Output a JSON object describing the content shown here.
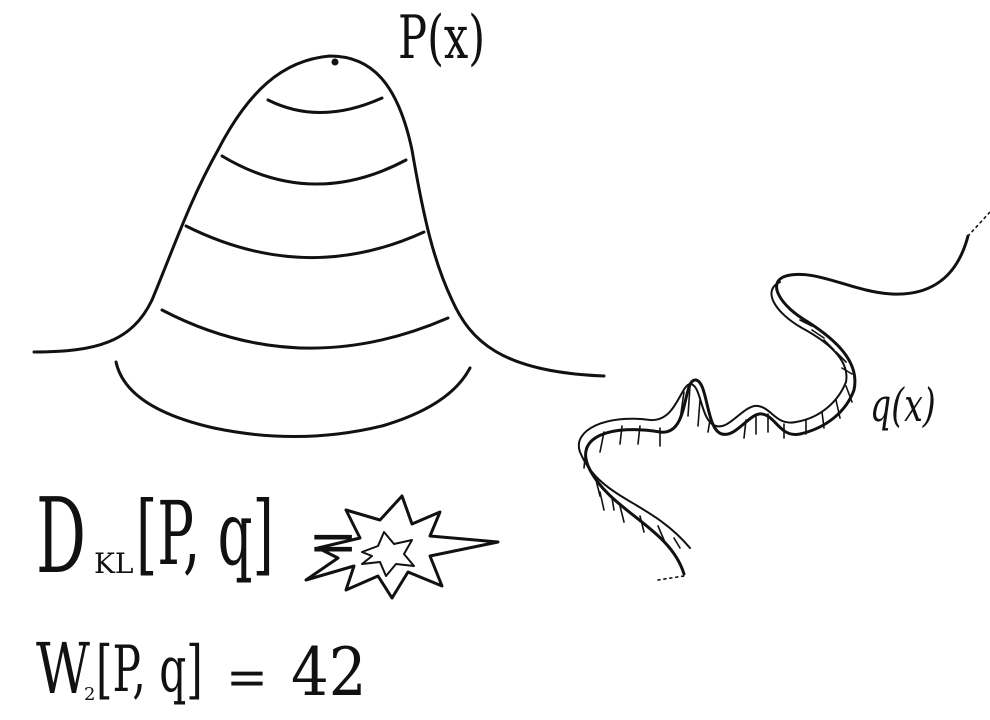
{
  "labels": {
    "p": "P(x)",
    "q": "q(x)"
  },
  "kl": {
    "symbol": "D",
    "subscript": "KL",
    "args": "[P, q]",
    "equals": "=",
    "value_icon": "explosion-icon"
  },
  "wasserstein": {
    "symbol": "W",
    "subscript": "2",
    "args": "[P, q]",
    "equals": "=",
    "value": "42"
  },
  "colors": {
    "ink": "#111111",
    "background": "#ffffff"
  }
}
